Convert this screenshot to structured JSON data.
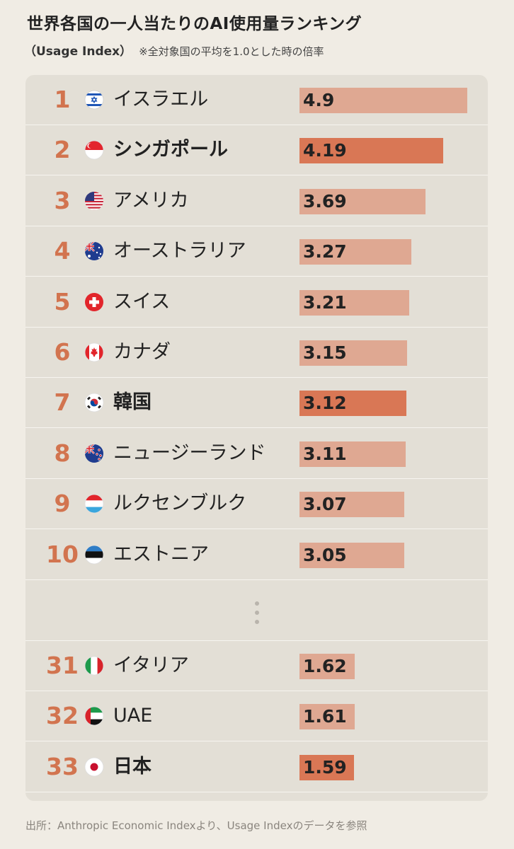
{
  "header": {
    "title": "世界各国の一人当たりのAI使用量ランキング",
    "subtitle_unit": "（Usage Index）",
    "subtitle_note": "※全対象国の平均を1.0とした時の倍率"
  },
  "chart_data": {
    "type": "bar",
    "title": "世界各国の一人当たりのAI使用量ランキング",
    "subtitle": "（Usage Index） ※全対象国の平均を1.0とした時の倍率",
    "xlim": [
      0,
      4.9
    ],
    "rows": [
      {
        "rank": "1",
        "country": "イスラエル",
        "value": 4.9,
        "value_label": "4.9",
        "highlight": false,
        "flag": "israel-flag"
      },
      {
        "rank": "2",
        "country": "シンガポール",
        "value": 4.19,
        "value_label": "4.19",
        "highlight": true,
        "flag": "singapore-flag"
      },
      {
        "rank": "3",
        "country": "アメリカ",
        "value": 3.69,
        "value_label": "3.69",
        "highlight": false,
        "flag": "usa-flag"
      },
      {
        "rank": "4",
        "country": "オーストラリア",
        "value": 3.27,
        "value_label": "3.27",
        "highlight": false,
        "flag": "australia-flag"
      },
      {
        "rank": "5",
        "country": "スイス",
        "value": 3.21,
        "value_label": "3.21",
        "highlight": false,
        "flag": "switzerland-flag"
      },
      {
        "rank": "6",
        "country": "カナダ",
        "value": 3.15,
        "value_label": "3.15",
        "highlight": false,
        "flag": "canada-flag"
      },
      {
        "rank": "7",
        "country": "韓国",
        "value": 3.12,
        "value_label": "3.12",
        "highlight": true,
        "flag": "korea-flag"
      },
      {
        "rank": "8",
        "country": "ニュージーランド",
        "value": 3.11,
        "value_label": "3.11",
        "highlight": false,
        "flag": "new-zealand-flag"
      },
      {
        "rank": "9",
        "country": "ルクセンブルク",
        "value": 3.07,
        "value_label": "3.07",
        "highlight": false,
        "flag": "luxembourg-flag"
      },
      {
        "rank": "10",
        "country": "エストニア",
        "value": 3.05,
        "value_label": "3.05",
        "highlight": false,
        "flag": "estonia-flag"
      },
      {
        "rank": "31",
        "country": "イタリア",
        "value": 1.62,
        "value_label": "1.62",
        "highlight": false,
        "flag": "italy-flag"
      },
      {
        "rank": "32",
        "country": "UAE",
        "value": 1.61,
        "value_label": "1.61",
        "highlight": false,
        "flag": "uae-flag"
      },
      {
        "rank": "33",
        "country": "日本",
        "value": 1.59,
        "value_label": "1.59",
        "highlight": true,
        "flag": "japan-flag"
      }
    ]
  },
  "colors": {
    "rank": "#d2744f",
    "bar": "#dfa892",
    "bar_highlight": "#d97755",
    "card_background": "#e3dfd6"
  },
  "footer": {
    "source": "出所：Anthropic Economic Indexより、Usage Indexのデータを参照"
  }
}
